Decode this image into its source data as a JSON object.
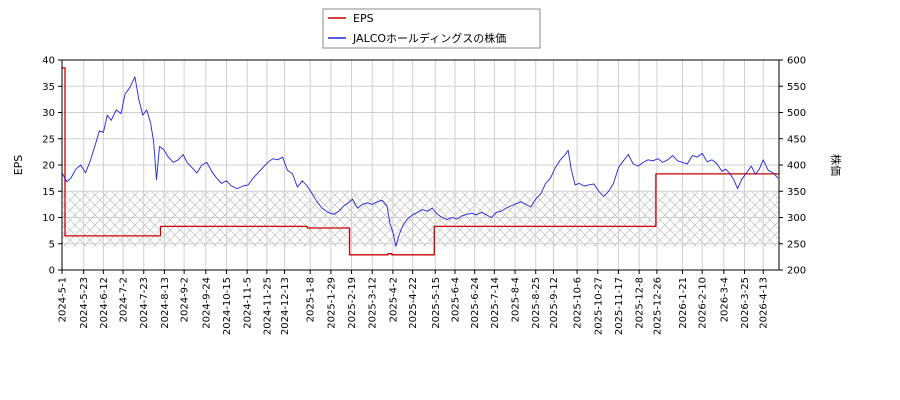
{
  "chart_data": {
    "type": "line",
    "title": "",
    "y_left_label": "EPS",
    "y_right_label": "株価",
    "y_left_range": [
      0,
      40
    ],
    "y_right_range": [
      200,
      600
    ],
    "y_left_ticks": [
      "0",
      "5",
      "10",
      "15",
      "20",
      "25",
      "30",
      "35",
      "40"
    ],
    "y_right_ticks": [
      "200",
      "250",
      "300",
      "350",
      "400",
      "450",
      "500",
      "550",
      "600"
    ],
    "x_range": [
      "2024-05-01",
      "2026-04-29"
    ],
    "x_ticks": [
      "2024-5-1",
      "2024-5-23",
      "2024-6-12",
      "2024-7-2",
      "2024-7-23",
      "2024-8-13",
      "2024-9-2",
      "2024-9-24",
      "2024-10-15",
      "2024-11-5",
      "2024-11-25",
      "2024-12-13",
      "2025-1-8",
      "2025-1-29",
      "2025-2-19",
      "2025-3-12",
      "2025-4-2",
      "2025-4-22",
      "2025-5-15",
      "2025-6-4",
      "2025-6-24",
      "2025-7-14",
      "2025-8-4",
      "2025-8-25",
      "2025-9-12",
      "2025-10-6",
      "2025-10-27",
      "2025-11-17",
      "2025-12-8",
      "2025-12-26",
      "2026-1-21",
      "2026-2-10",
      "2026-3-4",
      "2026-3-25",
      "2026-4-13"
    ],
    "grid": true,
    "legend_position": "top-center",
    "band": {
      "axis": "left",
      "from": 4.5,
      "to": 15
    },
    "series": [
      {
        "name": "EPS",
        "axis": "left",
        "color": "#cc0000",
        "step": true,
        "points": [
          [
            "2024-05-01",
            38.5
          ],
          [
            "2024-05-04",
            6.5
          ],
          [
            "2024-08-09",
            8.3
          ],
          [
            "2025-01-05",
            8.0
          ],
          [
            "2025-02-17",
            2.9
          ],
          [
            "2025-03-28",
            3.1
          ],
          [
            "2025-04-01",
            2.9
          ],
          [
            "2025-05-14",
            8.3
          ],
          [
            "2025-12-25",
            18.3
          ],
          [
            "2026-04-29",
            18.3
          ]
        ]
      },
      {
        "name": "JALCOホールディングスの株価",
        "axis": "right",
        "color": "#2222dd",
        "step": false,
        "points": [
          [
            "2024-05-01",
            385
          ],
          [
            "2024-05-06",
            368
          ],
          [
            "2024-05-10",
            375
          ],
          [
            "2024-05-15",
            392
          ],
          [
            "2024-05-20",
            400
          ],
          [
            "2024-05-25",
            385
          ],
          [
            "2024-05-30",
            410
          ],
          [
            "2024-06-04",
            440
          ],
          [
            "2024-06-08",
            465
          ],
          [
            "2024-06-12",
            462
          ],
          [
            "2024-06-16",
            495
          ],
          [
            "2024-06-20",
            485
          ],
          [
            "2024-06-25",
            505
          ],
          [
            "2024-06-30",
            498
          ],
          [
            "2024-07-04",
            535
          ],
          [
            "2024-07-09",
            548
          ],
          [
            "2024-07-14",
            568
          ],
          [
            "2024-07-18",
            525
          ],
          [
            "2024-07-22",
            495
          ],
          [
            "2024-07-26",
            505
          ],
          [
            "2024-07-30",
            480
          ],
          [
            "2024-08-02",
            445
          ],
          [
            "2024-08-05",
            372
          ],
          [
            "2024-08-08",
            435
          ],
          [
            "2024-08-12",
            430
          ],
          [
            "2024-08-17",
            415
          ],
          [
            "2024-08-22",
            405
          ],
          [
            "2024-08-27",
            410
          ],
          [
            "2024-09-01",
            420
          ],
          [
            "2024-09-05",
            405
          ],
          [
            "2024-09-10",
            395
          ],
          [
            "2024-09-15",
            385
          ],
          [
            "2024-09-20",
            400
          ],
          [
            "2024-09-25",
            405
          ],
          [
            "2024-09-30",
            388
          ],
          [
            "2024-10-05",
            375
          ],
          [
            "2024-10-10",
            365
          ],
          [
            "2024-10-15",
            370
          ],
          [
            "2024-10-20",
            360
          ],
          [
            "2024-10-26",
            355
          ],
          [
            "2024-11-01",
            360
          ],
          [
            "2024-11-06",
            362
          ],
          [
            "2024-11-11",
            375
          ],
          [
            "2024-11-16",
            385
          ],
          [
            "2024-11-21",
            395
          ],
          [
            "2024-11-26",
            405
          ],
          [
            "2024-12-01",
            412
          ],
          [
            "2024-12-06",
            410
          ],
          [
            "2024-12-11",
            415
          ],
          [
            "2024-12-16",
            390
          ],
          [
            "2024-12-21",
            383
          ],
          [
            "2024-12-26",
            358
          ],
          [
            "2024-12-31",
            370
          ],
          [
            "2025-01-05",
            360
          ],
          [
            "2025-01-10",
            345
          ],
          [
            "2025-01-15",
            330
          ],
          [
            "2025-01-20",
            318
          ],
          [
            "2025-01-26",
            310
          ],
          [
            "2025-02-01",
            306
          ],
          [
            "2025-02-06",
            312
          ],
          [
            "2025-02-11",
            322
          ],
          [
            "2025-02-16",
            328
          ],
          [
            "2025-02-20",
            335
          ],
          [
            "2025-02-25",
            318
          ],
          [
            "2025-03-02",
            325
          ],
          [
            "2025-03-07",
            328
          ],
          [
            "2025-03-12",
            325
          ],
          [
            "2025-03-17",
            330
          ],
          [
            "2025-03-22",
            333
          ],
          [
            "2025-03-27",
            322
          ],
          [
            "2025-03-30",
            288
          ],
          [
            "2025-04-02",
            272
          ],
          [
            "2025-04-05",
            245
          ],
          [
            "2025-04-08",
            265
          ],
          [
            "2025-04-12",
            285
          ],
          [
            "2025-04-17",
            298
          ],
          [
            "2025-04-22",
            305
          ],
          [
            "2025-04-27",
            310
          ],
          [
            "2025-05-02",
            315
          ],
          [
            "2025-05-07",
            312
          ],
          [
            "2025-05-12",
            318
          ],
          [
            "2025-05-17",
            306
          ],
          [
            "2025-05-22",
            300
          ],
          [
            "2025-05-27",
            296
          ],
          [
            "2025-06-01",
            300
          ],
          [
            "2025-06-06",
            297
          ],
          [
            "2025-06-11",
            303
          ],
          [
            "2025-06-16",
            306
          ],
          [
            "2025-06-21",
            308
          ],
          [
            "2025-06-26",
            305
          ],
          [
            "2025-07-01",
            310
          ],
          [
            "2025-07-06",
            305
          ],
          [
            "2025-07-11",
            300
          ],
          [
            "2025-07-16",
            310
          ],
          [
            "2025-07-21",
            312
          ],
          [
            "2025-07-26",
            318
          ],
          [
            "2025-07-31",
            322
          ],
          [
            "2025-08-05",
            326
          ],
          [
            "2025-08-10",
            330
          ],
          [
            "2025-08-15",
            325
          ],
          [
            "2025-08-20",
            320
          ],
          [
            "2025-08-25",
            335
          ],
          [
            "2025-08-30",
            345
          ],
          [
            "2025-09-04",
            365
          ],
          [
            "2025-09-09",
            375
          ],
          [
            "2025-09-14",
            395
          ],
          [
            "2025-09-19",
            410
          ],
          [
            "2025-09-24",
            420
          ],
          [
            "2025-09-27",
            428
          ],
          [
            "2025-09-30",
            392
          ],
          [
            "2025-10-04",
            362
          ],
          [
            "2025-10-08",
            365
          ],
          [
            "2025-10-13",
            360
          ],
          [
            "2025-10-18",
            362
          ],
          [
            "2025-10-23",
            364
          ],
          [
            "2025-10-28",
            350
          ],
          [
            "2025-11-02",
            340
          ],
          [
            "2025-11-07",
            350
          ],
          [
            "2025-11-12",
            365
          ],
          [
            "2025-11-17",
            395
          ],
          [
            "2025-11-22",
            408
          ],
          [
            "2025-11-27",
            420
          ],
          [
            "2025-12-02",
            402
          ],
          [
            "2025-12-07",
            398
          ],
          [
            "2025-12-12",
            405
          ],
          [
            "2025-12-17",
            410
          ],
          [
            "2025-12-22",
            408
          ],
          [
            "2025-12-27",
            412
          ],
          [
            "2026-01-01",
            405
          ],
          [
            "2026-01-06",
            410
          ],
          [
            "2026-01-11",
            418
          ],
          [
            "2026-01-16",
            408
          ],
          [
            "2026-01-21",
            405
          ],
          [
            "2026-01-26",
            402
          ],
          [
            "2026-01-31",
            418
          ],
          [
            "2026-02-05",
            415
          ],
          [
            "2026-02-10",
            422
          ],
          [
            "2026-02-15",
            406
          ],
          [
            "2026-02-20",
            410
          ],
          [
            "2026-02-25",
            402
          ],
          [
            "2026-03-02",
            388
          ],
          [
            "2026-03-06",
            392
          ],
          [
            "2026-03-10",
            384
          ],
          [
            "2026-03-14",
            372
          ],
          [
            "2026-03-18",
            355
          ],
          [
            "2026-03-22",
            372
          ],
          [
            "2026-03-27",
            385
          ],
          [
            "2026-04-01",
            398
          ],
          [
            "2026-04-05",
            382
          ],
          [
            "2026-04-09",
            392
          ],
          [
            "2026-04-13",
            410
          ],
          [
            "2026-04-18",
            390
          ],
          [
            "2026-04-23",
            385
          ],
          [
            "2026-04-28",
            375
          ]
        ]
      }
    ]
  }
}
